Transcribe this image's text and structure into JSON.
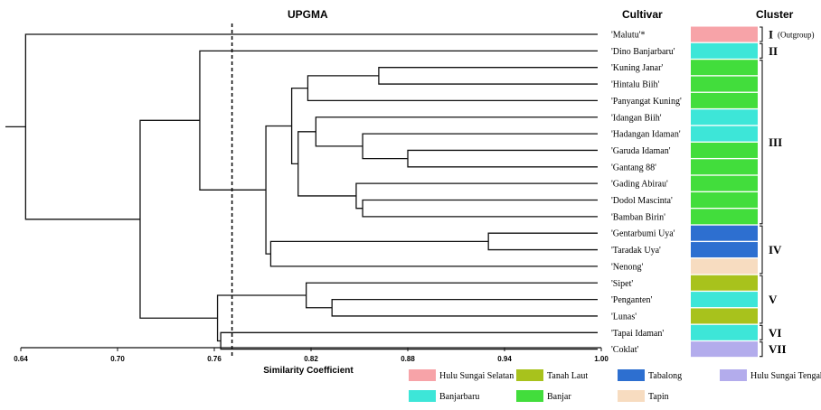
{
  "figure": {
    "method_title": "UPGMA",
    "cultivar_header": "Cultivar",
    "cluster_header": "Cluster",
    "x_axis_label": "Similarity Coefficient"
  },
  "chart_data": {
    "type": "dendrogram",
    "xlabel": "Similarity Coefficient",
    "xlim": [
      0.64,
      1.0
    ],
    "x_ticks": [
      "0.64",
      "0.70",
      "0.76",
      "0.82",
      "0.88",
      "0.94",
      "1.00"
    ],
    "cutoff_line": 0.771,
    "leaves": [
      {
        "label": "'Malutu'*",
        "color": "#f7a3a8"
      },
      {
        "label": "'Dino Banjarbaru'",
        "color": "#3de6d8"
      },
      {
        "label": "'Kuning Janar'",
        "color": "#42dd3c"
      },
      {
        "label": "'Hintalu Biih'",
        "color": "#42dd3c"
      },
      {
        "label": "'Panyangat Kuning'",
        "color": "#42dd3c"
      },
      {
        "label": "'Idangan Biih'",
        "color": "#3de6d8"
      },
      {
        "label": "'Hadangan Idaman'",
        "color": "#3de6d8"
      },
      {
        "label": "'Garuda Idaman'",
        "color": "#42dd3c"
      },
      {
        "label": "'Gantang 88'",
        "color": "#42dd3c"
      },
      {
        "label": "'Gading Abirau'",
        "color": "#42dd3c"
      },
      {
        "label": "'Dodol Mascinta'",
        "color": "#42dd3c"
      },
      {
        "label": "'Bamban Birin'",
        "color": "#42dd3c"
      },
      {
        "label": "'Gentarbumi Uya'",
        "color": "#2d6fd0"
      },
      {
        "label": "'Taradak Uya'",
        "color": "#2d6fd0"
      },
      {
        "label": "'Nenong'",
        "color": "#f7dcc0"
      },
      {
        "label": "'Sipet'",
        "color": "#a8c21c"
      },
      {
        "label": "'Penganten'",
        "color": "#3de6d8"
      },
      {
        "label": "'Lunas'",
        "color": "#a8c21c"
      },
      {
        "label": "'Tapai Idaman'",
        "color": "#3de6d8"
      },
      {
        "label": "'Coklat'",
        "color": "#b3acec"
      }
    ],
    "clusters": [
      {
        "label": "I",
        "note": "(Outgroup)",
        "first": 0,
        "last": 0
      },
      {
        "label": "II",
        "note": "",
        "first": 1,
        "last": 1
      },
      {
        "label": "III",
        "note": "",
        "first": 2,
        "last": 11
      },
      {
        "label": "IV",
        "note": "",
        "first": 12,
        "last": 14
      },
      {
        "label": "V",
        "note": "",
        "first": 15,
        "last": 17
      },
      {
        "label": "VI",
        "note": "",
        "first": 18,
        "last": 18
      },
      {
        "label": "VII",
        "note": "",
        "first": 19,
        "last": 19
      }
    ],
    "merges": [
      {
        "id": "m1",
        "a": 2,
        "b": 3,
        "height": 0.862
      },
      {
        "id": "m2",
        "a": "m1",
        "b": 4,
        "height": 0.818
      },
      {
        "id": "m3",
        "a": 7,
        "b": 8,
        "height": 0.88
      },
      {
        "id": "m4",
        "a": 6,
        "b": "m3",
        "height": 0.852
      },
      {
        "id": "m5",
        "a": 5,
        "b": "m4",
        "height": 0.823
      },
      {
        "id": "m6",
        "a": 10,
        "b": 11,
        "height": 0.852
      },
      {
        "id": "m7",
        "a": 9,
        "b": "m6",
        "height": 0.848
      },
      {
        "id": "m8",
        "a": "m5",
        "b": "m7",
        "height": 0.812
      },
      {
        "id": "m9",
        "a": "m2",
        "b": "m8",
        "height": 0.808
      },
      {
        "id": "m10",
        "a": 12,
        "b": 13,
        "height": 0.93
      },
      {
        "id": "m11",
        "a": "m10",
        "b": 14,
        "height": 0.795
      },
      {
        "id": "m12",
        "a": "m9",
        "b": "m11",
        "height": 0.792
      },
      {
        "id": "m13",
        "a": 16,
        "b": 17,
        "height": 0.833
      },
      {
        "id": "m14",
        "a": 15,
        "b": "m13",
        "height": 0.817
      },
      {
        "id": "m15",
        "a": 18,
        "b": 19,
        "height": 0.764
      },
      {
        "id": "m16",
        "a": "m14",
        "b": "m15",
        "height": 0.762
      },
      {
        "id": "m17",
        "a": 1,
        "b": "m12",
        "height": 0.751
      },
      {
        "id": "m18",
        "a": "m17",
        "b": "m16",
        "height": 0.714
      },
      {
        "id": "m19",
        "a": 0,
        "b": "m18",
        "height": 0.643
      }
    ],
    "legend": [
      {
        "label": "Hulu Sungai Selatan",
        "color": "#f7a3a8"
      },
      {
        "label": "Tanah Laut",
        "color": "#a8c21c"
      },
      {
        "label": "Tabalong",
        "color": "#2d6fd0"
      },
      {
        "label": "Hulu Sungai Tengah",
        "color": "#b3acec"
      },
      {
        "label": "Banjarbaru",
        "color": "#3de6d8"
      },
      {
        "label": "Banjar",
        "color": "#42dd3c"
      },
      {
        "label": "Tapin",
        "color": "#f7dcc0"
      }
    ]
  }
}
